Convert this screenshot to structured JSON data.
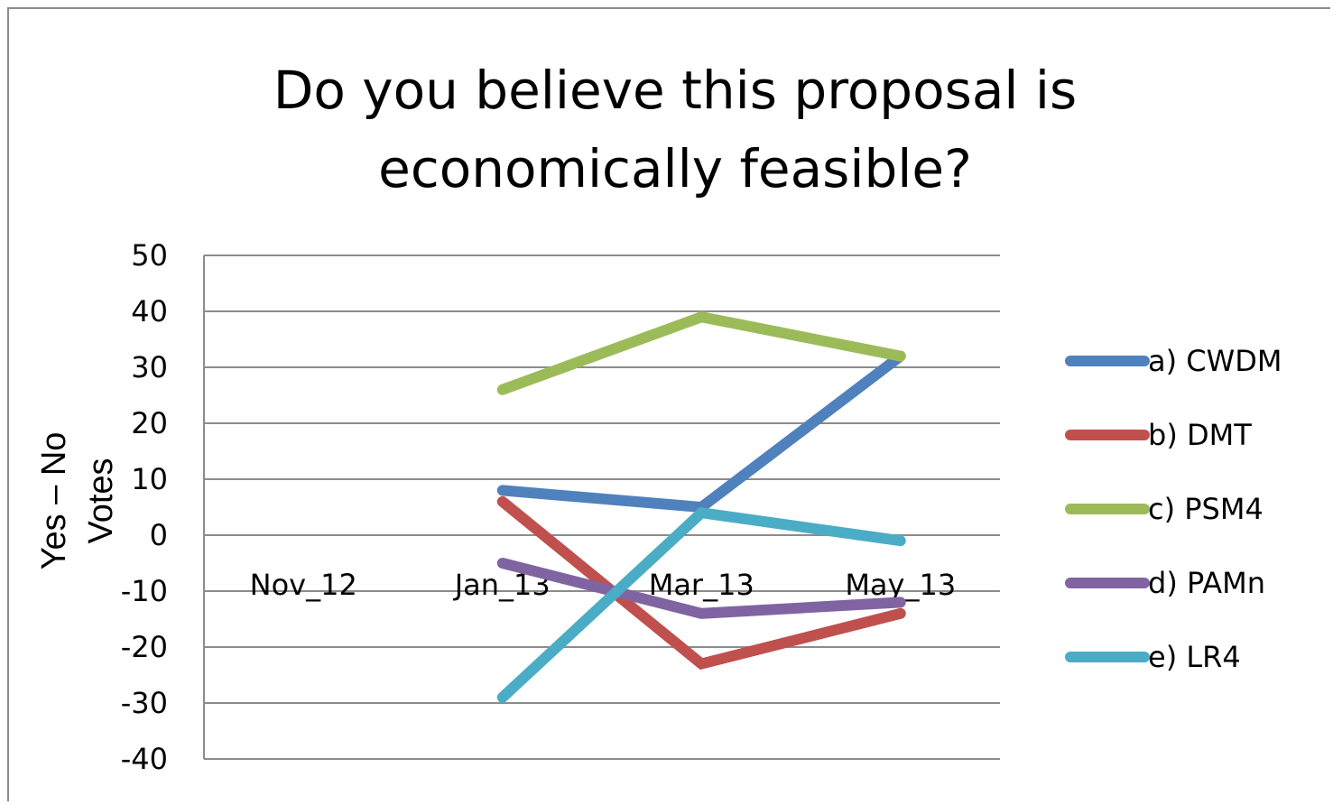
{
  "chart_data": {
    "type": "line",
    "title_lines": [
      "Do you believe this proposal is",
      "economically feasible?"
    ],
    "ylabel_lines": [
      "Yes – No",
      "Votes"
    ],
    "xlabel": "",
    "categories": [
      "Nov_12",
      "Jan_13",
      "Mar_13",
      "May_13"
    ],
    "ylim": [
      -40,
      50
    ],
    "yticks": [
      50,
      40,
      30,
      20,
      10,
      0,
      -10,
      -20,
      -30,
      -40
    ],
    "grid": true,
    "legend_position": "right",
    "series": [
      {
        "name": "a) CWDM",
        "color": "#4f81bd",
        "values": [
          null,
          8,
          5,
          32
        ]
      },
      {
        "name": "b) DMT",
        "color": "#c0504d",
        "values": [
          null,
          6,
          -23,
          -14
        ]
      },
      {
        "name": "c) PSM4",
        "color": "#9bbb59",
        "values": [
          null,
          26,
          39,
          32
        ]
      },
      {
        "name": "d) PAMn",
        "color": "#8064a2",
        "values": [
          null,
          -5,
          -14,
          -12
        ]
      },
      {
        "name": "e) LR4",
        "color": "#4bacc6",
        "values": [
          null,
          -29,
          4,
          -1
        ]
      }
    ]
  }
}
